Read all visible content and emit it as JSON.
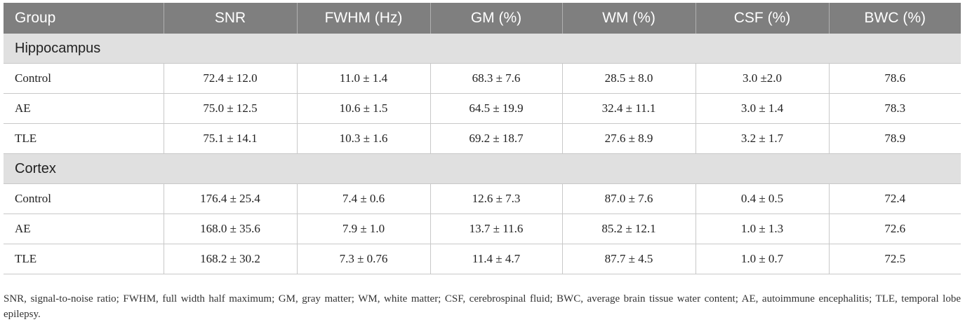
{
  "table": {
    "columns": [
      "Group",
      "SNR",
      "FWHM (Hz)",
      "GM (%)",
      "WM (%)",
      "CSF (%)",
      "BWC (%)"
    ],
    "sections": [
      {
        "title": "Hippocampus",
        "rows": [
          [
            "Control",
            "72.4 ± 12.0",
            "11.0 ± 1.4",
            "68.3 ± 7.6",
            "28.5 ± 8.0",
            "3.0 ±2.0",
            "78.6"
          ],
          [
            "AE",
            "75.0 ± 12.5",
            "10.6 ± 1.5",
            "64.5 ± 19.9",
            "32.4 ± 11.1",
            "3.0 ± 1.4",
            "78.3"
          ],
          [
            "TLE",
            "75.1 ± 14.1",
            "10.3 ± 1.6",
            "69.2 ± 18.7",
            "27.6 ± 8.9",
            "3.2 ± 1.7",
            "78.9"
          ]
        ]
      },
      {
        "title": "Cortex",
        "rows": [
          [
            "Control",
            "176.4 ± 25.4",
            "7.4 ± 0.6",
            "12.6 ± 7.3",
            "87.0 ± 7.6",
            "0.4 ± 0.5",
            "72.4"
          ],
          [
            "AE",
            "168.0 ± 35.6",
            "7.9 ± 1.0",
            "13.7 ± 11.6",
            "85.2 ± 12.1",
            "1.0 ± 1.3",
            "72.6"
          ],
          [
            "TLE",
            "168.2 ± 30.2",
            "7.3 ± 0.76",
            "11.4 ± 4.7",
            "87.7 ± 4.5",
            "1.0 ± 0.7",
            "72.5"
          ]
        ]
      }
    ]
  },
  "footnote": "SNR, signal-to-noise ratio; FWHM, full width half maximum; GM, gray matter; WM, white matter; CSF, cerebrospinal fluid; BWC, average brain tissue water content; AE, autoimmune encephalitis; TLE, temporal lobe epilepsy."
}
